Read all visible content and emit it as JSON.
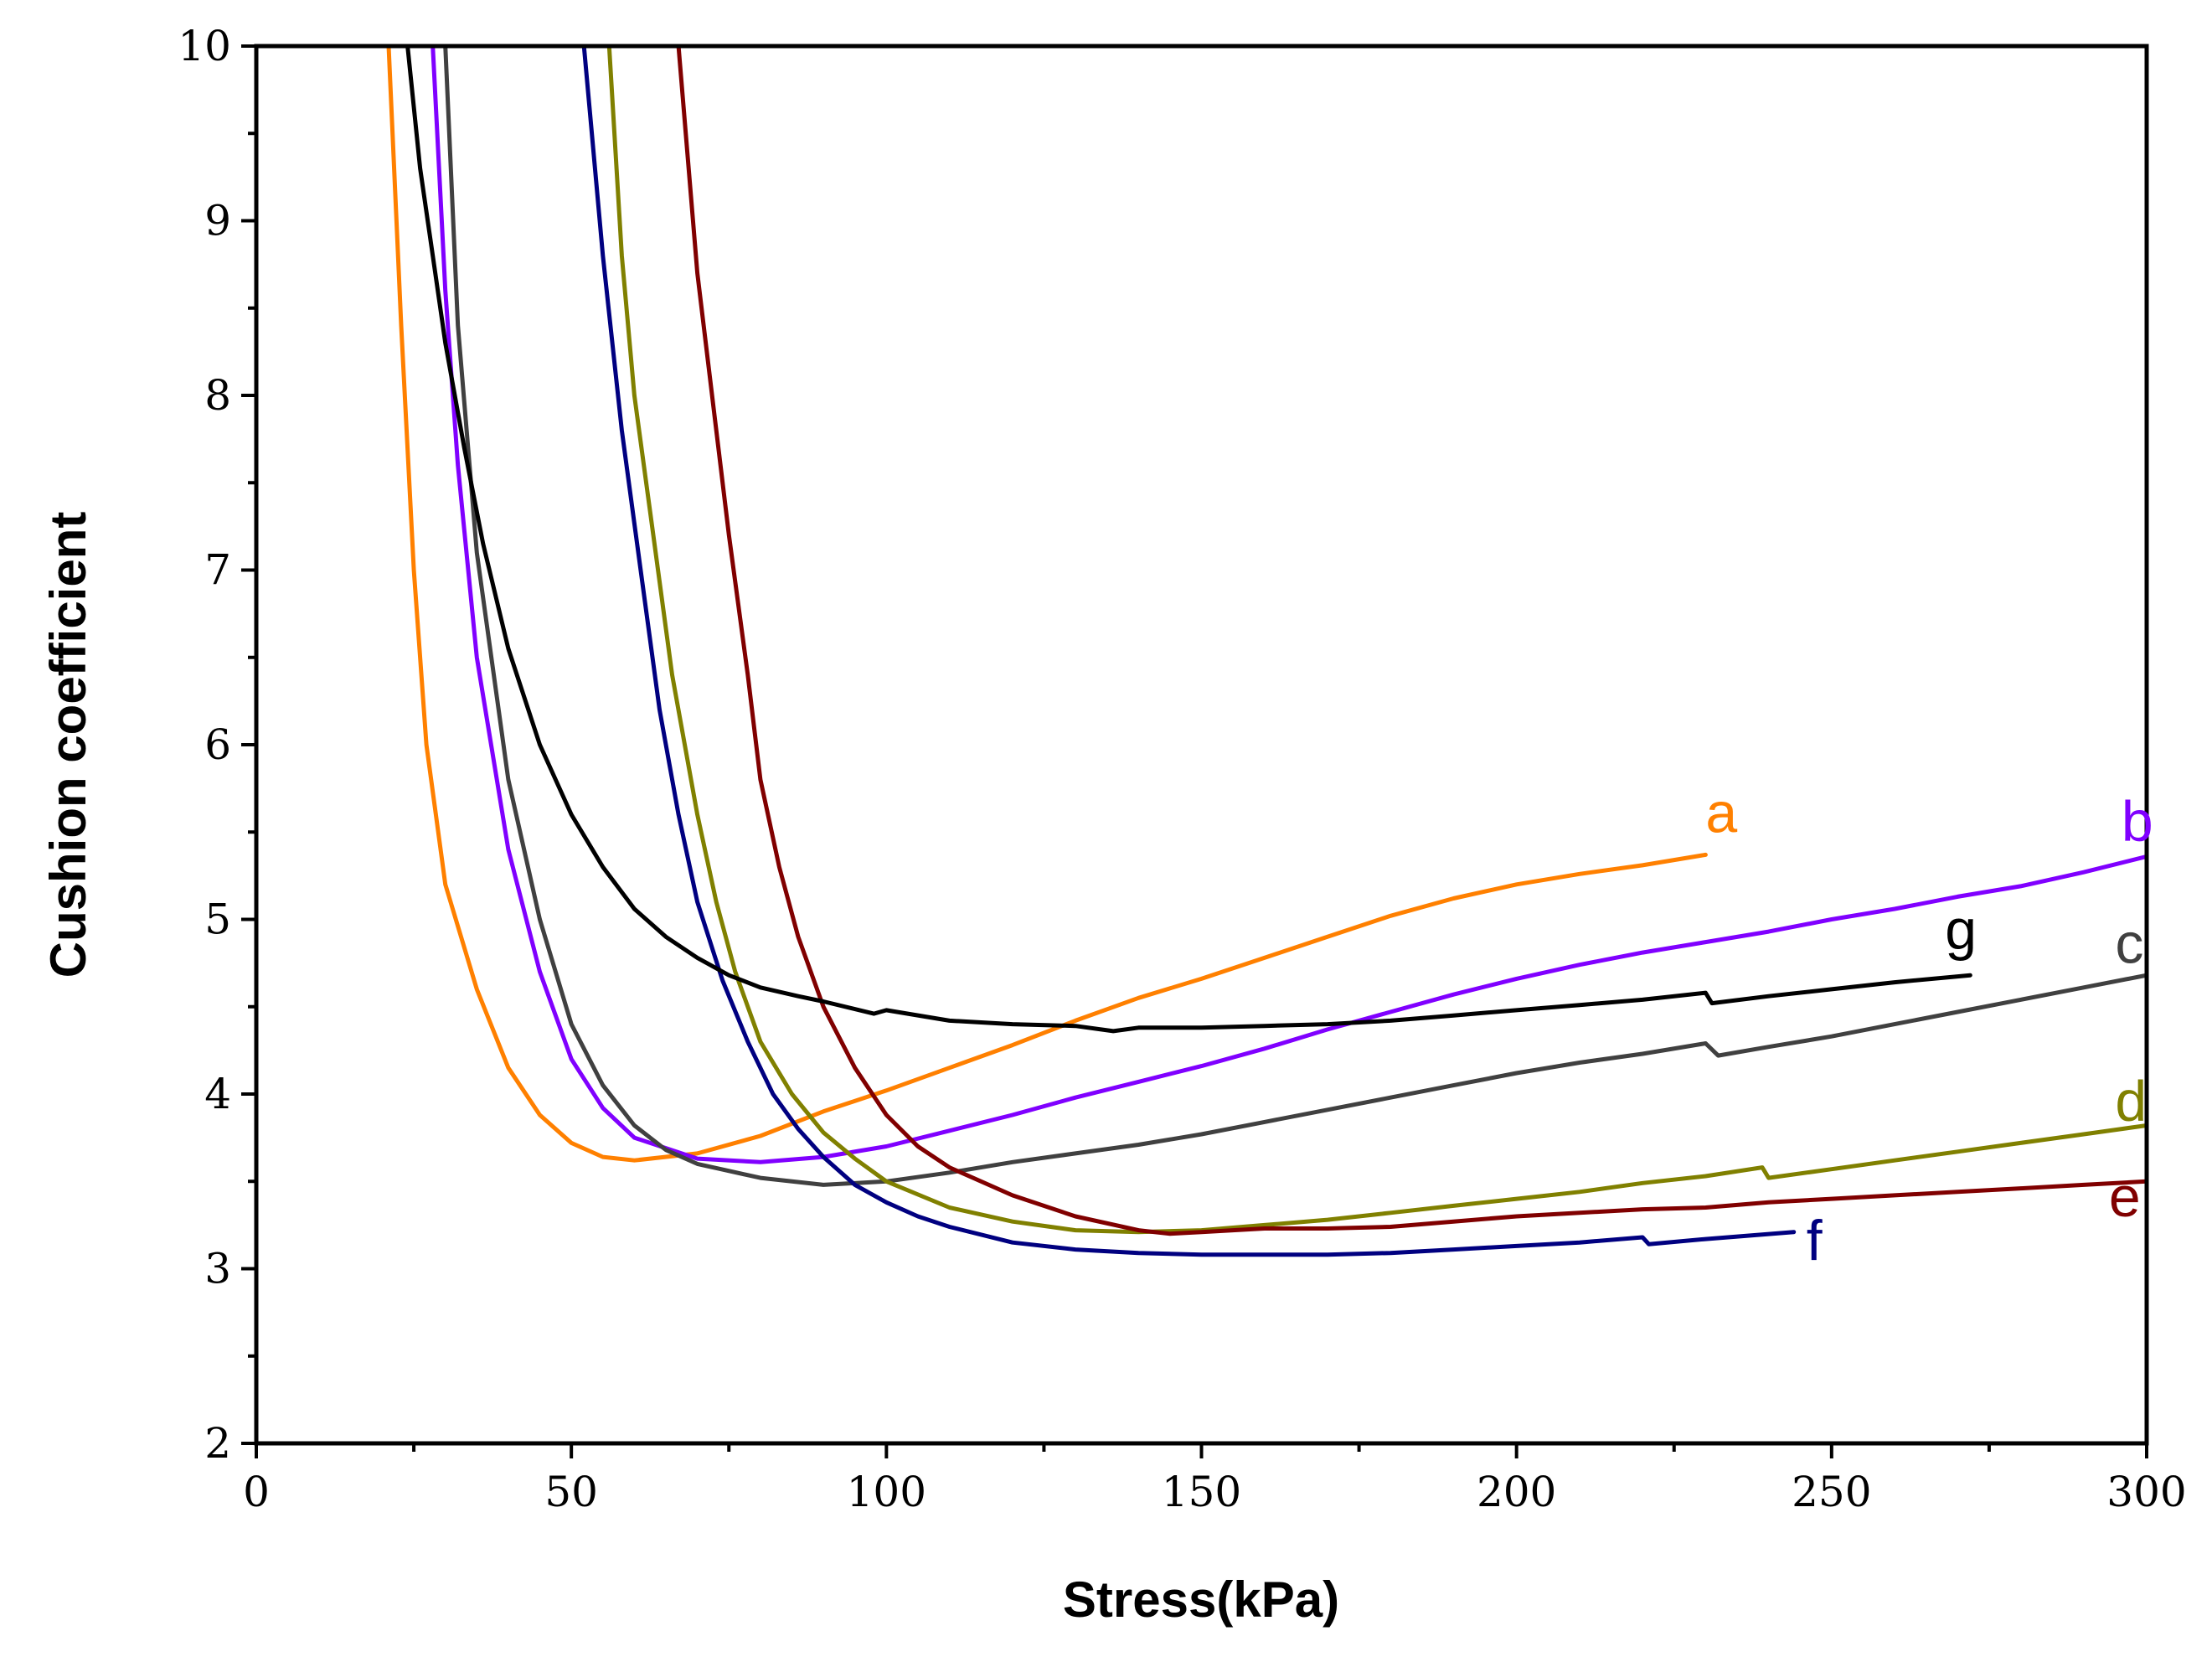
{
  "chart_data": {
    "type": "line",
    "title": "",
    "xlabel": "Stress(kPa)",
    "ylabel": "Cushion coefficient",
    "xlim": [
      0,
      300
    ],
    "ylim": [
      2,
      10
    ],
    "xticks": [
      0,
      50,
      100,
      150,
      200,
      250,
      300
    ],
    "yticks": [
      2,
      3,
      4,
      5,
      6,
      7,
      8,
      9,
      10
    ],
    "xtick_labels": [
      "0",
      "50",
      "100",
      "150",
      "200",
      "250",
      "300"
    ],
    "ytick_labels": [
      "2",
      "3",
      "4",
      "5",
      "6",
      "7",
      "8",
      "9",
      "10"
    ],
    "grid": false,
    "legend": "inline labels at series ends",
    "series": [
      {
        "name": "a",
        "color": "#ff8000",
        "x": [
          21,
          23,
          25,
          27,
          30,
          35,
          40,
          45,
          50,
          55,
          60,
          70,
          80,
          90,
          100,
          110,
          120,
          130,
          140,
          150,
          160,
          170,
          180,
          190,
          200,
          210,
          220,
          230
        ],
        "y": [
          10,
          8.4,
          7.0,
          6.0,
          5.2,
          4.6,
          4.15,
          3.88,
          3.72,
          3.64,
          3.62,
          3.66,
          3.76,
          3.9,
          4.02,
          4.15,
          4.28,
          4.42,
          4.55,
          4.66,
          4.78,
          4.9,
          5.02,
          5.12,
          5.2,
          5.26,
          5.31,
          5.37
        ],
        "label_pos": [
          230,
          5.5
        ]
      },
      {
        "name": "b",
        "color": "#8000ff",
        "x": [
          28,
          30,
          32,
          35,
          40,
          45,
          50,
          55,
          60,
          70,
          80,
          90,
          100,
          110,
          120,
          130,
          140,
          150,
          160,
          170,
          180,
          190,
          200,
          210,
          220,
          230,
          240,
          250,
          260,
          270,
          280,
          290,
          300
        ],
        "y": [
          10,
          8.6,
          7.6,
          6.5,
          5.4,
          4.7,
          4.2,
          3.92,
          3.75,
          3.63,
          3.61,
          3.64,
          3.7,
          3.79,
          3.88,
          3.98,
          4.07,
          4.16,
          4.26,
          4.37,
          4.47,
          4.57,
          4.66,
          4.74,
          4.81,
          4.87,
          4.93,
          5.0,
          5.06,
          5.13,
          5.19,
          5.27,
          5.36
        ],
        "label_pos": [
          296,
          5.45
        ]
      },
      {
        "name": "c",
        "color": "#404040",
        "x": [
          30,
          32,
          35,
          40,
          45,
          50,
          55,
          60,
          65,
          70,
          80,
          90,
          100,
          110,
          120,
          130,
          140,
          150,
          160,
          170,
          180,
          190,
          200,
          210,
          220,
          230,
          232,
          240,
          250,
          260,
          270,
          280,
          290,
          300
        ],
        "y": [
          10,
          8.4,
          7.1,
          5.8,
          5.0,
          4.4,
          4.05,
          3.82,
          3.68,
          3.6,
          3.52,
          3.48,
          3.5,
          3.55,
          3.61,
          3.66,
          3.71,
          3.77,
          3.84,
          3.91,
          3.98,
          4.05,
          4.12,
          4.18,
          4.23,
          4.29,
          4.22,
          4.27,
          4.33,
          4.4,
          4.47,
          4.54,
          4.61,
          4.68
        ],
        "label_pos": [
          295,
          4.75
        ]
      },
      {
        "name": "d",
        "color": "#808000",
        "x": [
          56,
          58,
          60,
          63,
          66,
          70,
          73,
          76,
          80,
          85,
          90,
          95,
          100,
          110,
          120,
          130,
          140,
          150,
          160,
          170,
          180,
          190,
          200,
          210,
          220,
          230,
          239,
          240,
          250,
          260,
          270,
          280,
          290,
          300
        ],
        "y": [
          10,
          8.8,
          8.0,
          7.2,
          6.4,
          5.6,
          5.1,
          4.7,
          4.3,
          4.0,
          3.78,
          3.63,
          3.5,
          3.35,
          3.27,
          3.22,
          3.21,
          3.22,
          3.25,
          3.28,
          3.32,
          3.36,
          3.4,
          3.44,
          3.49,
          3.53,
          3.58,
          3.52,
          3.57,
          3.62,
          3.67,
          3.72,
          3.77,
          3.82
        ],
        "label_pos": [
          295,
          3.85
        ]
      },
      {
        "name": "e",
        "color": "#800000",
        "x": [
          67,
          70,
          73,
          75,
          78,
          80,
          83,
          86,
          90,
          95,
          100,
          105,
          110,
          120,
          130,
          140,
          145,
          150,
          160,
          170,
          180,
          190,
          200,
          210,
          220,
          230,
          240,
          250,
          260,
          270,
          280,
          290,
          300
        ],
        "y": [
          10,
          8.7,
          7.8,
          7.2,
          6.4,
          5.8,
          5.3,
          4.9,
          4.5,
          4.15,
          3.88,
          3.7,
          3.58,
          3.42,
          3.3,
          3.22,
          3.2,
          3.21,
          3.23,
          3.23,
          3.24,
          3.27,
          3.3,
          3.32,
          3.34,
          3.35,
          3.38,
          3.4,
          3.42,
          3.44,
          3.46,
          3.48,
          3.5
        ],
        "label_pos": [
          294,
          3.3
        ]
      },
      {
        "name": "f",
        "color": "#000080",
        "x": [
          52,
          55,
          58,
          61,
          64,
          67,
          70,
          74,
          78,
          82,
          86,
          90,
          95,
          100,
          105,
          110,
          120,
          130,
          140,
          150,
          160,
          170,
          180,
          190,
          200,
          210,
          220,
          221,
          230,
          244
        ],
        "y": [
          10,
          8.8,
          7.8,
          7.0,
          6.2,
          5.6,
          5.1,
          4.65,
          4.3,
          4.0,
          3.8,
          3.64,
          3.48,
          3.38,
          3.3,
          3.24,
          3.15,
          3.11,
          3.09,
          3.08,
          3.08,
          3.08,
          3.09,
          3.11,
          3.13,
          3.15,
          3.18,
          3.14,
          3.17,
          3.21
        ],
        "label_pos": [
          246,
          3.05
        ]
      },
      {
        "name": "g",
        "color": "#000000",
        "x": [
          24,
          26,
          28,
          30,
          33,
          36,
          40,
          45,
          50,
          55,
          60,
          65,
          70,
          75,
          80,
          86,
          90,
          98,
          100,
          110,
          120,
          130,
          136,
          140,
          150,
          160,
          170,
          180,
          190,
          200,
          210,
          220,
          230,
          231,
          240,
          250,
          260,
          272
        ],
        "y": [
          10,
          9.3,
          8.8,
          8.3,
          7.7,
          7.15,
          6.55,
          6.0,
          5.6,
          5.3,
          5.06,
          4.9,
          4.78,
          4.68,
          4.61,
          4.56,
          4.53,
          4.46,
          4.48,
          4.42,
          4.4,
          4.39,
          4.36,
          4.38,
          4.38,
          4.39,
          4.4,
          4.42,
          4.45,
          4.48,
          4.51,
          4.54,
          4.58,
          4.52,
          4.56,
          4.6,
          4.64,
          4.68
        ],
        "label_pos": [
          268,
          4.83
        ]
      }
    ]
  }
}
